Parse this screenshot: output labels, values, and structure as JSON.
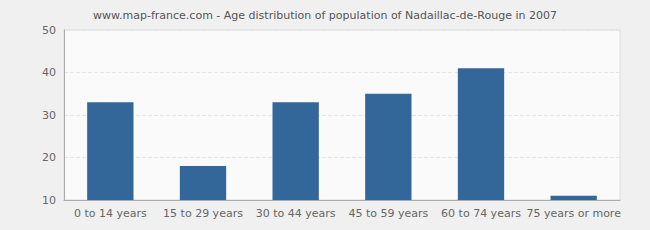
{
  "chart_data": {
    "type": "bar",
    "title": "www.map-france.com - Age distribution of population of Nadaillac-de-Rouge in 2007",
    "categories": [
      "0 to 14 years",
      "15 to 29 years",
      "30 to 44 years",
      "45 to 59 years",
      "60 to 74 years",
      "75 years or more"
    ],
    "values": [
      33,
      18,
      33,
      35,
      41,
      11
    ],
    "color": "#336699",
    "ylim": [
      10,
      50
    ],
    "yticks": [
      10,
      20,
      30,
      40,
      50
    ],
    "grid": true
  }
}
